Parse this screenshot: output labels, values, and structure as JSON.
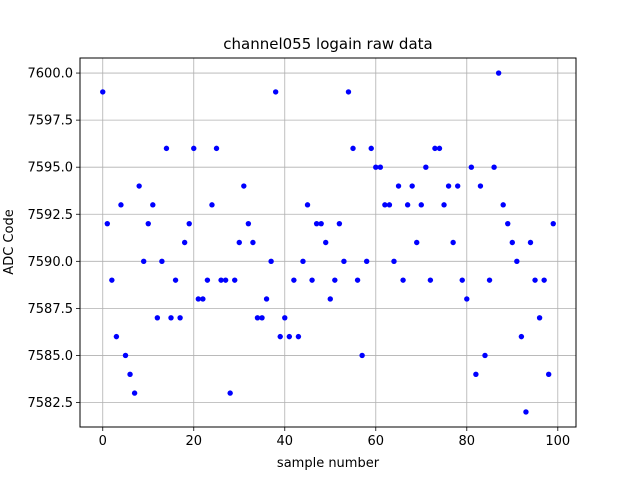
{
  "chart_data": {
    "type": "scatter",
    "title": "channel055 logain raw data",
    "xlabel": "sample number",
    "ylabel": "ADC Code",
    "xlim": [
      -5,
      104
    ],
    "ylim": [
      7581.2,
      7600.8
    ],
    "xticks": [
      0,
      20,
      40,
      60,
      80,
      100
    ],
    "yticks": [
      7582.5,
      7585.0,
      7587.5,
      7590.0,
      7592.5,
      7595.0,
      7597.5,
      7600.0
    ],
    "ytick_labels": [
      "7582.5",
      "7585.0",
      "7587.5",
      "7590.0",
      "7592.5",
      "7595.0",
      "7597.5",
      "7600.0"
    ],
    "xtick_labels": [
      "0",
      "20",
      "40",
      "60",
      "80",
      "100"
    ],
    "grid": true,
    "marker_color": "#0000ff",
    "series": [
      {
        "x": [
          0,
          1,
          2,
          3,
          4,
          5,
          6,
          7,
          8,
          9,
          10,
          11,
          12,
          13,
          14,
          15,
          16,
          17,
          18,
          19,
          20,
          21,
          22,
          23,
          24,
          25,
          26,
          27,
          28,
          29,
          30,
          31,
          32,
          33,
          34,
          35,
          36,
          37,
          38,
          39,
          40,
          41,
          42,
          43,
          44,
          45,
          46,
          47,
          48,
          49,
          50,
          51,
          52,
          53,
          54,
          55,
          56,
          57,
          58,
          59,
          60,
          61,
          62,
          63,
          64,
          65,
          66,
          67,
          68,
          69,
          70,
          71,
          72,
          73,
          74,
          75,
          76,
          77,
          78,
          79,
          80,
          81,
          82,
          83,
          84,
          85,
          86,
          87,
          88,
          89,
          90,
          91,
          92,
          93,
          94,
          95,
          96,
          97,
          98,
          99
        ],
        "y": [
          7599,
          7592,
          7589,
          7586,
          7593,
          7585,
          7584,
          7583,
          7594,
          7590,
          7592,
          7593,
          7587,
          7590,
          7596,
          7587,
          7589,
          7587,
          7591,
          7592,
          7596,
          7588,
          7588,
          7589,
          7593,
          7596,
          7589,
          7589,
          7583,
          7589,
          7591,
          7594,
          7592,
          7591,
          7587,
          7587,
          7588,
          7590,
          7599,
          7586,
          7587,
          7586,
          7589,
          7586,
          7590,
          7593,
          7589,
          7592,
          7592,
          7591,
          7588,
          7589,
          7592,
          7590,
          7599,
          7596,
          7589,
          7585,
          7590,
          7596,
          7595,
          7595,
          7593,
          7593,
          7590,
          7594,
          7589,
          7593,
          7594,
          7591,
          7593,
          7595,
          7589,
          7596,
          7596,
          7593,
          7594,
          7591,
          7594,
          7589,
          7588,
          7595,
          7584,
          7594,
          7585,
          7589,
          7595,
          7600,
          7593,
          7592,
          7591,
          7590,
          7586,
          7582,
          7591,
          7589,
          7587,
          7589,
          7584,
          7592
        ]
      }
    ]
  }
}
